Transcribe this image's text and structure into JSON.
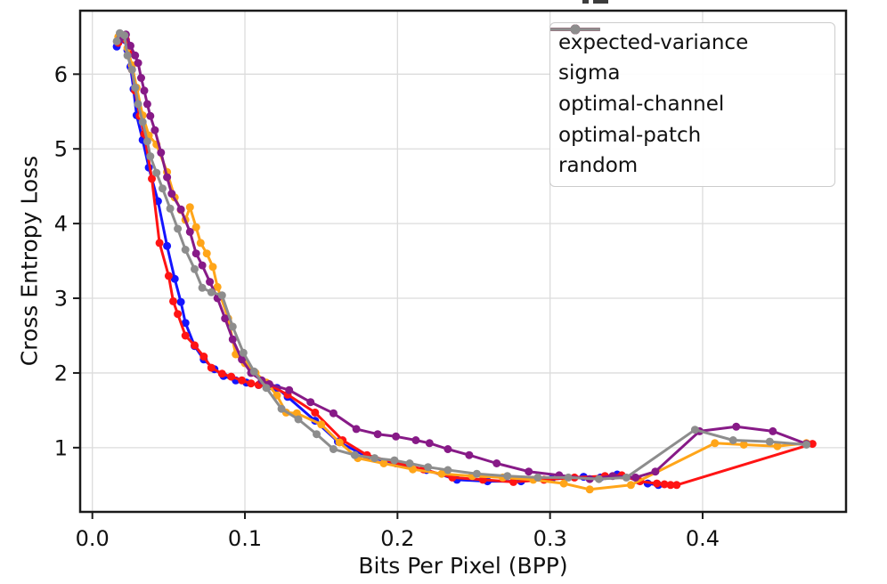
{
  "chart_data": {
    "type": "line",
    "title": "",
    "title_note": "title is cropped out of frame; only tiny glyph fragments visible at top",
    "xlabel": "Bits Per Pixel (BPP)",
    "ylabel": "Cross Entropy Loss",
    "xlim": [
      -0.008,
      0.494
    ],
    "ylim": [
      0.14,
      6.85
    ],
    "x_ticks": [
      0.0,
      0.1,
      0.2,
      0.3,
      0.4
    ],
    "x_tick_labels": [
      "0.0",
      "0.1",
      "0.2",
      "0.3",
      "0.4"
    ],
    "y_ticks": [
      1,
      2,
      3,
      4,
      5,
      6
    ],
    "y_tick_labels": [
      "1",
      "2",
      "3",
      "4",
      "5",
      "6"
    ],
    "grid": true,
    "grid_color": "#dcdcdc",
    "legend_position": "upper right",
    "marker": "circle",
    "series": [
      {
        "name": "expected-variance",
        "color": "#1414ff",
        "points": [
          [
            0.016,
            6.37
          ],
          [
            0.018,
            6.48
          ],
          [
            0.021,
            6.46
          ],
          [
            0.023,
            6.32
          ],
          [
            0.025,
            6.1
          ],
          [
            0.027,
            5.8
          ],
          [
            0.029,
            5.45
          ],
          [
            0.033,
            5.12
          ],
          [
            0.037,
            4.75
          ],
          [
            0.043,
            4.3
          ],
          [
            0.049,
            3.7
          ],
          [
            0.054,
            3.26
          ],
          [
            0.058,
            2.95
          ],
          [
            0.061,
            2.67
          ],
          [
            0.067,
            2.36
          ],
          [
            0.073,
            2.18
          ],
          [
            0.08,
            2.05
          ],
          [
            0.086,
            1.96
          ],
          [
            0.094,
            1.9
          ],
          [
            0.101,
            1.87
          ],
          [
            0.109,
            1.84
          ],
          [
            0.116,
            1.82
          ],
          [
            0.121,
            1.8
          ],
          [
            0.128,
            1.68
          ],
          [
            0.146,
            1.36
          ],
          [
            0.161,
            1.08
          ],
          [
            0.18,
            0.88
          ],
          [
            0.199,
            0.79
          ],
          [
            0.219,
            0.7
          ],
          [
            0.239,
            0.57
          ],
          [
            0.259,
            0.55
          ],
          [
            0.281,
            0.55
          ],
          [
            0.301,
            0.58
          ],
          [
            0.322,
            0.61
          ],
          [
            0.333,
            0.6
          ],
          [
            0.344,
            0.64
          ],
          [
            0.358,
            0.56
          ],
          [
            0.364,
            0.52
          ],
          [
            0.371,
            0.5
          ]
        ]
      },
      {
        "name": "sigma",
        "color": "#ff1414",
        "points": [
          [
            0.017,
            6.42
          ],
          [
            0.019,
            6.5
          ],
          [
            0.022,
            6.46
          ],
          [
            0.024,
            6.28
          ],
          [
            0.026,
            6.06
          ],
          [
            0.028,
            5.78
          ],
          [
            0.031,
            5.44
          ],
          [
            0.034,
            5.2
          ],
          [
            0.039,
            4.6
          ],
          [
            0.044,
            3.74
          ],
          [
            0.05,
            3.3
          ],
          [
            0.053,
            2.96
          ],
          [
            0.056,
            2.79
          ],
          [
            0.061,
            2.5
          ],
          [
            0.067,
            2.37
          ],
          [
            0.073,
            2.22
          ],
          [
            0.078,
            2.07
          ],
          [
            0.085,
            1.99
          ],
          [
            0.091,
            1.95
          ],
          [
            0.098,
            1.9
          ],
          [
            0.104,
            1.86
          ],
          [
            0.109,
            1.84
          ],
          [
            0.116,
            1.84
          ],
          [
            0.128,
            1.71
          ],
          [
            0.146,
            1.47
          ],
          [
            0.164,
            1.1
          ],
          [
            0.18,
            0.9
          ],
          [
            0.198,
            0.8
          ],
          [
            0.217,
            0.71
          ],
          [
            0.236,
            0.6
          ],
          [
            0.256,
            0.57
          ],
          [
            0.276,
            0.54
          ],
          [
            0.296,
            0.57
          ],
          [
            0.316,
            0.6
          ],
          [
            0.336,
            0.62
          ],
          [
            0.347,
            0.63
          ],
          [
            0.359,
            0.55
          ],
          [
            0.37,
            0.52
          ],
          [
            0.375,
            0.51
          ],
          [
            0.379,
            0.5
          ],
          [
            0.383,
            0.5
          ],
          [
            0.472,
            1.05
          ]
        ]
      },
      {
        "name": "optimal-channel",
        "color": "#ffa519",
        "points": [
          [
            0.017,
            6.5
          ],
          [
            0.02,
            6.52
          ],
          [
            0.023,
            6.35
          ],
          [
            0.026,
            6.12
          ],
          [
            0.029,
            5.82
          ],
          [
            0.033,
            5.45
          ],
          [
            0.037,
            5.18
          ],
          [
            0.042,
            5.06
          ],
          [
            0.049,
            4.69
          ],
          [
            0.054,
            4.35
          ],
          [
            0.058,
            4.18
          ],
          [
            0.061,
            4.05
          ],
          [
            0.064,
            4.22
          ],
          [
            0.068,
            3.95
          ],
          [
            0.071,
            3.74
          ],
          [
            0.075,
            3.6
          ],
          [
            0.079,
            3.42
          ],
          [
            0.082,
            3.15
          ],
          [
            0.089,
            2.73
          ],
          [
            0.094,
            2.25
          ],
          [
            0.1,
            2.13
          ],
          [
            0.107,
            2.0
          ],
          [
            0.114,
            1.87
          ],
          [
            0.121,
            1.7
          ],
          [
            0.127,
            1.47
          ],
          [
            0.134,
            1.46
          ],
          [
            0.15,
            1.31
          ],
          [
            0.162,
            1.07
          ],
          [
            0.174,
            0.86
          ],
          [
            0.191,
            0.79
          ],
          [
            0.21,
            0.71
          ],
          [
            0.229,
            0.65
          ],
          [
            0.249,
            0.62
          ],
          [
            0.269,
            0.6
          ],
          [
            0.289,
            0.57
          ],
          [
            0.309,
            0.52
          ],
          [
            0.326,
            0.44
          ],
          [
            0.353,
            0.5
          ],
          [
            0.408,
            1.06
          ],
          [
            0.427,
            1.04
          ],
          [
            0.449,
            1.02
          ],
          [
            0.468,
            1.06
          ]
        ]
      },
      {
        "name": "optimal-patch",
        "color": "#871a87",
        "points": [
          [
            0.018,
            6.47
          ],
          [
            0.022,
            6.53
          ],
          [
            0.025,
            6.38
          ],
          [
            0.028,
            6.25
          ],
          [
            0.03,
            6.15
          ],
          [
            0.032,
            5.95
          ],
          [
            0.034,
            5.78
          ],
          [
            0.036,
            5.6
          ],
          [
            0.038,
            5.44
          ],
          [
            0.041,
            5.25
          ],
          [
            0.045,
            4.95
          ],
          [
            0.049,
            4.62
          ],
          [
            0.052,
            4.4
          ],
          [
            0.058,
            4.19
          ],
          [
            0.064,
            3.89
          ],
          [
            0.068,
            3.6
          ],
          [
            0.072,
            3.44
          ],
          [
            0.077,
            3.22
          ],
          [
            0.082,
            3.0
          ],
          [
            0.087,
            2.73
          ],
          [
            0.092,
            2.45
          ],
          [
            0.098,
            2.18
          ],
          [
            0.104,
            2.0
          ],
          [
            0.111,
            1.9
          ],
          [
            0.116,
            1.85
          ],
          [
            0.129,
            1.77
          ],
          [
            0.143,
            1.61
          ],
          [
            0.158,
            1.46
          ],
          [
            0.173,
            1.25
          ],
          [
            0.187,
            1.18
          ],
          [
            0.199,
            1.15
          ],
          [
            0.212,
            1.1
          ],
          [
            0.221,
            1.06
          ],
          [
            0.233,
            0.98
          ],
          [
            0.247,
            0.9
          ],
          [
            0.265,
            0.79
          ],
          [
            0.286,
            0.68
          ],
          [
            0.306,
            0.63
          ],
          [
            0.326,
            0.58
          ],
          [
            0.341,
            0.62
          ],
          [
            0.356,
            0.6
          ],
          [
            0.369,
            0.68
          ],
          [
            0.398,
            1.22
          ],
          [
            0.422,
            1.28
          ],
          [
            0.446,
            1.22
          ],
          [
            0.468,
            1.05
          ]
        ]
      },
      {
        "name": "random",
        "color": "#8d8d8d",
        "points": [
          [
            0.016,
            6.44
          ],
          [
            0.018,
            6.55
          ],
          [
            0.021,
            6.52
          ],
          [
            0.023,
            6.25
          ],
          [
            0.026,
            6.06
          ],
          [
            0.028,
            5.82
          ],
          [
            0.03,
            5.6
          ],
          [
            0.033,
            5.36
          ],
          [
            0.036,
            5.1
          ],
          [
            0.038,
            4.9
          ],
          [
            0.042,
            4.68
          ],
          [
            0.046,
            4.47
          ],
          [
            0.051,
            4.2
          ],
          [
            0.056,
            3.93
          ],
          [
            0.061,
            3.65
          ],
          [
            0.067,
            3.39
          ],
          [
            0.072,
            3.14
          ],
          [
            0.078,
            3.08
          ],
          [
            0.085,
            3.04
          ],
          [
            0.092,
            2.62
          ],
          [
            0.099,
            2.27
          ],
          [
            0.106,
            2.02
          ],
          [
            0.114,
            1.8
          ],
          [
            0.124,
            1.52
          ],
          [
            0.135,
            1.38
          ],
          [
            0.147,
            1.18
          ],
          [
            0.158,
            0.98
          ],
          [
            0.172,
            0.9
          ],
          [
            0.185,
            0.86
          ],
          [
            0.198,
            0.83
          ],
          [
            0.208,
            0.79
          ],
          [
            0.22,
            0.74
          ],
          [
            0.233,
            0.7
          ],
          [
            0.252,
            0.65
          ],
          [
            0.272,
            0.62
          ],
          [
            0.292,
            0.6
          ],
          [
            0.312,
            0.6
          ],
          [
            0.332,
            0.58
          ],
          [
            0.35,
            0.6
          ],
          [
            0.395,
            1.24
          ],
          [
            0.42,
            1.1
          ],
          [
            0.444,
            1.08
          ],
          [
            0.468,
            1.04
          ]
        ]
      }
    ]
  }
}
